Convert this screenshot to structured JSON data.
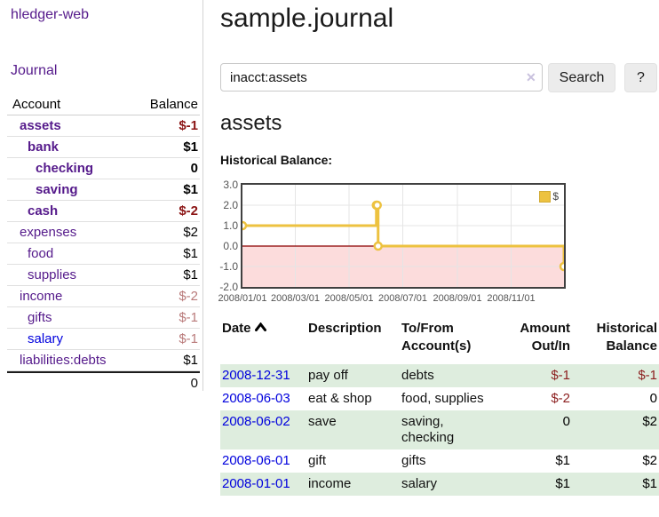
{
  "sidebar": {
    "brand": "hledger-web",
    "nav_journal": "Journal",
    "accounts_table": {
      "headers": {
        "account": "Account",
        "balance": "Balance"
      },
      "rows": [
        {
          "name": "assets",
          "level": 0,
          "bold": true,
          "balance": "$-1",
          "balance_tone": "negative-strong",
          "link_tone": "visited"
        },
        {
          "name": "bank",
          "level": 1,
          "bold": true,
          "balance": "$1",
          "balance_tone": "pos",
          "link_tone": "visited"
        },
        {
          "name": "checking",
          "level": 2,
          "bold": true,
          "balance": "0",
          "balance_tone": "pos",
          "link_tone": "visited"
        },
        {
          "name": "saving",
          "level": 2,
          "bold": true,
          "balance": "$1",
          "balance_tone": "pos",
          "link_tone": "visited"
        },
        {
          "name": "cash",
          "level": 1,
          "bold": true,
          "balance": "$-2",
          "balance_tone": "negative-strong",
          "link_tone": "visited"
        },
        {
          "name": "expenses",
          "level": 0,
          "bold": false,
          "balance": "$2",
          "balance_tone": "pos",
          "link_tone": "visited"
        },
        {
          "name": "food",
          "level": 1,
          "bold": false,
          "balance": "$1",
          "balance_tone": "pos",
          "link_tone": "visited"
        },
        {
          "name": "supplies",
          "level": 1,
          "bold": false,
          "balance": "$1",
          "balance_tone": "pos",
          "link_tone": "visited"
        },
        {
          "name": "income",
          "level": 0,
          "bold": false,
          "balance": "$-2",
          "balance_tone": "negative-muted",
          "link_tone": "visited"
        },
        {
          "name": "gifts",
          "level": 1,
          "bold": false,
          "balance": "$-1",
          "balance_tone": "negative-muted",
          "link_tone": "visited"
        },
        {
          "name": "salary",
          "level": 1,
          "bold": false,
          "balance": "$-1",
          "balance_tone": "negative-muted",
          "link_tone": "unvisited"
        },
        {
          "name": "liabilities:debts",
          "level": 0,
          "bold": false,
          "balance": "$1",
          "balance_tone": "pos",
          "link_tone": "visited"
        }
      ],
      "total": "0"
    }
  },
  "main": {
    "title": "sample.journal",
    "search": {
      "value": "inacct:assets",
      "clear_icon": "✕",
      "search_button": "Search",
      "help_button": "?"
    },
    "account_heading": "assets",
    "chart_label": "Historical Balance:"
  },
  "chart_data": {
    "type": "line",
    "step": true,
    "title": "Historical Balance",
    "series": [
      {
        "name": "$",
        "color": "#edc240",
        "points": [
          [
            "2008-01-01",
            1
          ],
          [
            "2008-06-01",
            2
          ],
          [
            "2008-06-02",
            2
          ],
          [
            "2008-06-03",
            0
          ],
          [
            "2008-12-31",
            -1
          ]
        ]
      }
    ],
    "xlim": [
      "2008-01-01",
      "2008-12-31"
    ],
    "ylim": [
      -2,
      3
    ],
    "x_ticks": [
      {
        "date": "2008-01-01",
        "label": "2008/01/01"
      },
      {
        "date": "2008-03-01",
        "label": "2008/03/01"
      },
      {
        "date": "2008-05-01",
        "label": "2008/05/01"
      },
      {
        "date": "2008-07-01",
        "label": "2008/07/01"
      },
      {
        "date": "2008-09-01",
        "label": "2008/09/01"
      },
      {
        "date": "2008-11-01",
        "label": "2008/11/01"
      }
    ],
    "y_ticks": [
      {
        "value": 3,
        "label": "3.0"
      },
      {
        "value": 2,
        "label": "2.0"
      },
      {
        "value": 1,
        "label": "1.0"
      },
      {
        "value": 0,
        "label": "0.0"
      },
      {
        "value": -1,
        "label": "-1.0"
      },
      {
        "value": -2,
        "label": "-2.0"
      }
    ],
    "legend": {
      "position": "top-right",
      "entries": [
        {
          "swatch": "#edc240",
          "label": "$"
        }
      ]
    },
    "grid": true,
    "grid_color": "#e5e5e5",
    "negative_region_fill": "#fcdcdc",
    "zero_line_color": "#8b0000"
  },
  "register_table": {
    "headers": {
      "date": "Date",
      "description": "Description",
      "accounts": "To/From Account(s)",
      "amount": "Amount Out/In",
      "balance": "Historical Balance"
    },
    "rows": [
      {
        "date": "2008-12-31",
        "description": "pay off",
        "accounts": "debts",
        "amount": "$-1",
        "amount_tone": "negative",
        "balance": "$-1",
        "balance_tone": "negative",
        "shaded": true
      },
      {
        "date": "2008-06-03",
        "description": "eat & shop",
        "accounts": "food, supplies",
        "amount": "$-2",
        "amount_tone": "negative",
        "balance": "0",
        "balance_tone": "pos",
        "shaded": false
      },
      {
        "date": "2008-06-02",
        "description": "save",
        "accounts": "saving, checking",
        "amount": "0",
        "amount_tone": "pos",
        "balance": "$2",
        "balance_tone": "pos",
        "shaded": true
      },
      {
        "date": "2008-06-01",
        "description": "gift",
        "accounts": "gifts",
        "amount": "$1",
        "amount_tone": "pos",
        "balance": "$2",
        "balance_tone": "pos",
        "shaded": false
      },
      {
        "date": "2008-01-01",
        "description": "income",
        "accounts": "salary",
        "amount": "$1",
        "amount_tone": "pos",
        "balance": "$1",
        "balance_tone": "pos",
        "shaded": true
      }
    ]
  },
  "colors": {
    "link_visited": "#551a8b",
    "link_unvisited": "#0000dd",
    "negative_strong": "#8b1414",
    "negative_muted": "#b97a7a",
    "negative": "#8b1e1e",
    "row_stripe_green": "#deedde",
    "series_yellow": "#edc240",
    "negative_region_pink": "#fcdcdc",
    "zero_line_red": "#8b0000"
  }
}
